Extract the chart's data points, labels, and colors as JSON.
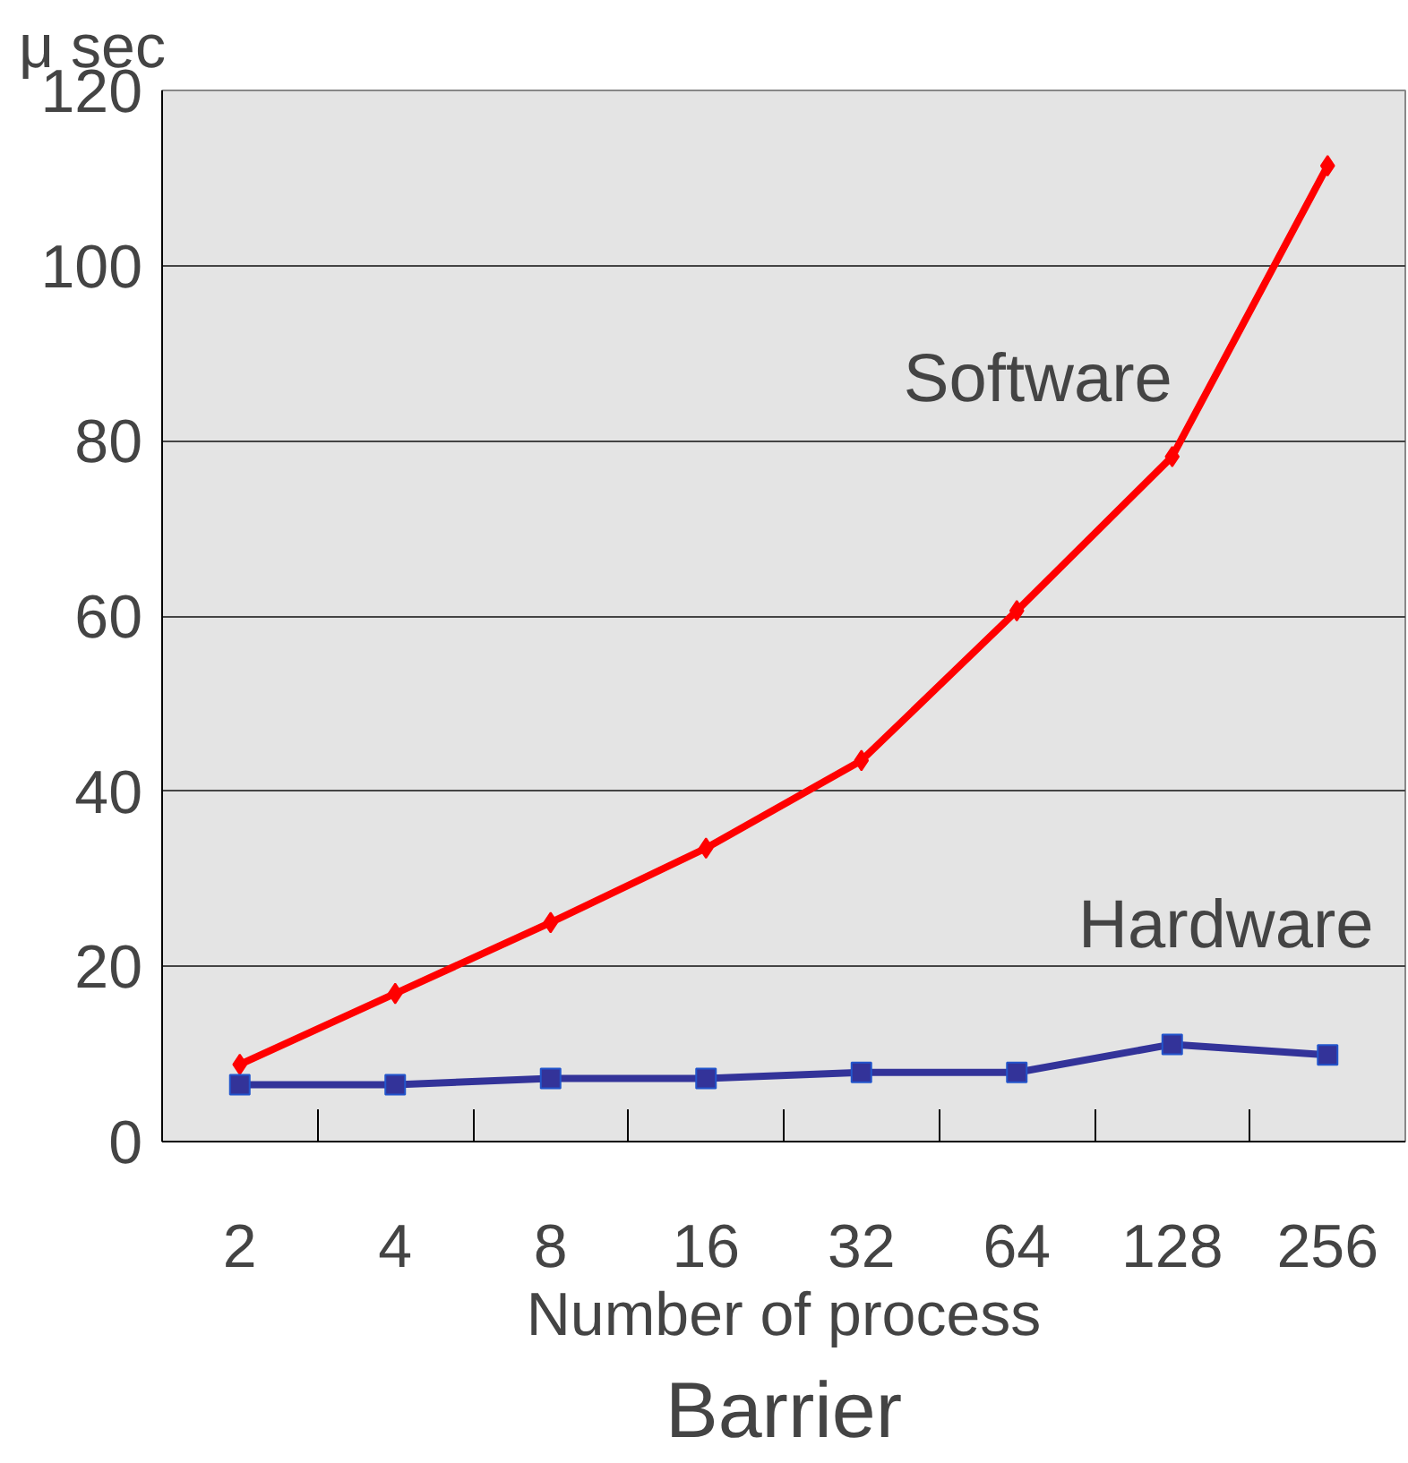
{
  "chart_data": {
    "type": "line",
    "title": "Barrier",
    "xlabel": "Number of process",
    "ylabel": "μ sec",
    "categories": [
      "2",
      "4",
      "8",
      "16",
      "32",
      "64",
      "128",
      "256"
    ],
    "series": [
      {
        "name": "Software",
        "color": "#ff0000",
        "marker": "diamond",
        "values": [
          8.8,
          16.9,
          25,
          33.5,
          43.5,
          60.6,
          78.2,
          111.4
        ]
      },
      {
        "name": "Hardware",
        "color": "#333399",
        "marker": "square",
        "values": [
          6.5,
          6.5,
          7.2,
          7.2,
          7.9,
          7.9,
          11.1,
          9.9
        ]
      }
    ],
    "ylim": [
      0,
      120
    ],
    "yticks": [
      0,
      20,
      40,
      60,
      80,
      100,
      120
    ],
    "grid": "y"
  }
}
